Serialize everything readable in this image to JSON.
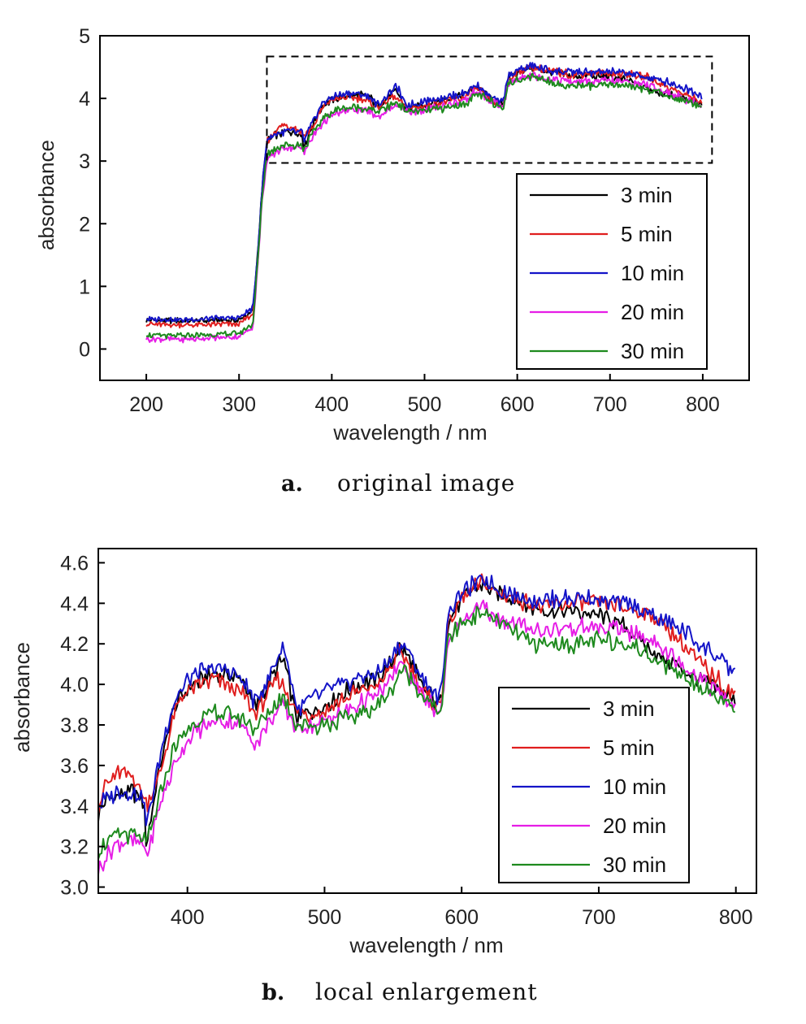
{
  "chart_data": [
    {
      "id": "a",
      "type": "line",
      "caption_letter": "a.",
      "caption": "original image",
      "xlabel": "wavelength / nm",
      "ylabel": "absorbance",
      "xlim": [
        150,
        850
      ],
      "ylim": [
        -0.5,
        5
      ],
      "xticks": [
        200,
        300,
        400,
        500,
        600,
        700,
        800
      ],
      "yticks": [
        0,
        1,
        2,
        3,
        4,
        5
      ],
      "grid": false,
      "legend_position": "bottom-right",
      "dashed_box": {
        "x": [
          330,
          810
        ],
        "y": [
          2.97,
          4.67
        ]
      },
      "series_keys": [
        "3 min",
        "5 min",
        "10 min",
        "20 min",
        "30 min"
      ]
    },
    {
      "id": "b",
      "type": "line",
      "caption_letter": "b.",
      "caption": "local enlargement",
      "xlabel": "wavelength / nm",
      "ylabel": "absorbance",
      "xlim": [
        335,
        815
      ],
      "ylim": [
        2.97,
        4.67
      ],
      "xticks": [
        400,
        500,
        600,
        700,
        800
      ],
      "yticks": [
        3.0,
        3.2,
        3.4,
        3.6,
        3.8,
        4.0,
        4.2,
        4.4,
        4.6
      ],
      "ytick_labels": [
        "3.0",
        "3.2",
        "3.4",
        "3.6",
        "3.8",
        "4.0",
        "4.2",
        "4.4",
        "4.6"
      ],
      "grid": false,
      "legend_position": "bottom-right",
      "series_keys": [
        "3 min",
        "5 min",
        "10 min",
        "20 min",
        "30 min"
      ]
    }
  ],
  "series": [
    {
      "name": "3 min",
      "color": "#000000",
      "x": [
        200,
        240,
        300,
        315,
        320,
        325,
        330,
        340,
        350,
        360,
        368,
        370,
        380,
        390,
        400,
        410,
        420,
        430,
        440,
        450,
        460,
        465,
        470,
        480,
        500,
        520,
        540,
        550,
        555,
        560,
        570,
        580,
        585,
        590,
        600,
        610,
        615,
        620,
        630,
        640,
        650,
        660,
        680,
        700,
        720,
        740,
        760,
        780,
        800
      ],
      "y": [
        0.46,
        0.45,
        0.46,
        0.6,
        1.5,
        2.6,
        3.3,
        3.42,
        3.46,
        3.47,
        3.42,
        3.22,
        3.6,
        3.88,
        3.98,
        4.02,
        4.05,
        4.05,
        4.02,
        3.88,
        4.02,
        4.08,
        4.12,
        3.83,
        3.9,
        3.98,
        4.04,
        4.12,
        4.18,
        4.15,
        4.0,
        3.92,
        3.9,
        4.32,
        4.42,
        4.48,
        4.5,
        4.47,
        4.44,
        4.42,
        4.38,
        4.36,
        4.36,
        4.34,
        4.28,
        4.16,
        4.08,
        4.0,
        3.92
      ]
    },
    {
      "name": "5 min",
      "color": "#e01e1e",
      "x": [
        200,
        240,
        300,
        315,
        320,
        325,
        330,
        340,
        350,
        360,
        368,
        370,
        380,
        390,
        400,
        410,
        420,
        430,
        440,
        450,
        460,
        465,
        470,
        480,
        500,
        520,
        540,
        550,
        555,
        560,
        570,
        580,
        585,
        590,
        600,
        610,
        615,
        620,
        630,
        640,
        650,
        660,
        680,
        700,
        720,
        740,
        760,
        780,
        800
      ],
      "y": [
        0.4,
        0.38,
        0.4,
        0.55,
        1.4,
        2.5,
        3.3,
        3.5,
        3.57,
        3.55,
        3.45,
        3.4,
        3.55,
        3.85,
        3.98,
        4.0,
        4.02,
        4.0,
        3.95,
        3.85,
        3.98,
        4.02,
        4.0,
        3.85,
        3.87,
        3.95,
        4.0,
        4.1,
        4.16,
        4.12,
        3.98,
        3.9,
        3.9,
        4.3,
        4.42,
        4.48,
        4.5,
        4.48,
        4.44,
        4.42,
        4.4,
        4.38,
        4.4,
        4.4,
        4.38,
        4.34,
        4.2,
        4.06,
        3.95
      ]
    },
    {
      "name": "10 min",
      "color": "#1414c8",
      "x": [
        200,
        240,
        300,
        315,
        320,
        325,
        330,
        340,
        350,
        360,
        368,
        370,
        380,
        390,
        400,
        410,
        420,
        430,
        440,
        450,
        460,
        465,
        470,
        480,
        500,
        520,
        540,
        550,
        555,
        560,
        570,
        580,
        585,
        590,
        600,
        610,
        615,
        620,
        630,
        640,
        650,
        660,
        680,
        700,
        720,
        740,
        760,
        780,
        800
      ],
      "y": [
        0.48,
        0.47,
        0.5,
        0.65,
        1.5,
        2.6,
        3.35,
        3.44,
        3.47,
        3.46,
        3.45,
        3.3,
        3.65,
        3.92,
        4.02,
        4.06,
        4.08,
        4.07,
        4.02,
        3.9,
        4.05,
        4.12,
        4.2,
        3.88,
        3.96,
        4.02,
        4.06,
        4.14,
        4.2,
        4.18,
        4.04,
        3.95,
        3.95,
        4.35,
        4.45,
        4.5,
        4.52,
        4.5,
        4.46,
        4.44,
        4.42,
        4.42,
        4.42,
        4.42,
        4.4,
        4.34,
        4.27,
        4.17,
        4.05
      ]
    },
    {
      "name": "20 min",
      "color": "#e61ee6",
      "x": [
        200,
        240,
        300,
        315,
        320,
        325,
        330,
        340,
        350,
        360,
        368,
        370,
        380,
        390,
        400,
        410,
        420,
        430,
        440,
        450,
        460,
        465,
        470,
        480,
        500,
        520,
        540,
        550,
        555,
        560,
        570,
        580,
        585,
        590,
        600,
        610,
        615,
        620,
        630,
        640,
        650,
        660,
        680,
        700,
        720,
        740,
        760,
        780,
        800
      ],
      "y": [
        0.16,
        0.15,
        0.2,
        0.35,
        1.3,
        2.4,
        3.0,
        3.15,
        3.22,
        3.22,
        3.2,
        3.15,
        3.4,
        3.6,
        3.72,
        3.78,
        3.82,
        3.82,
        3.8,
        3.7,
        3.82,
        3.86,
        3.9,
        3.78,
        3.82,
        3.88,
        3.95,
        4.05,
        4.1,
        4.08,
        3.96,
        3.88,
        3.86,
        4.22,
        4.32,
        4.36,
        4.38,
        4.35,
        4.32,
        4.3,
        4.28,
        4.26,
        4.28,
        4.28,
        4.26,
        4.22,
        4.1,
        4.0,
        3.88
      ]
    },
    {
      "name": "30 min",
      "color": "#1e8a1e",
      "x": [
        200,
        240,
        300,
        315,
        320,
        325,
        330,
        340,
        350,
        360,
        368,
        370,
        380,
        390,
        400,
        410,
        420,
        430,
        440,
        450,
        460,
        465,
        470,
        480,
        500,
        520,
        540,
        550,
        555,
        560,
        570,
        580,
        585,
        590,
        600,
        610,
        615,
        620,
        630,
        640,
        650,
        660,
        680,
        700,
        720,
        740,
        760,
        780,
        800
      ],
      "y": [
        0.22,
        0.21,
        0.25,
        0.4,
        1.35,
        2.45,
        3.1,
        3.22,
        3.26,
        3.26,
        3.24,
        3.2,
        3.45,
        3.68,
        3.78,
        3.84,
        3.86,
        3.85,
        3.83,
        3.78,
        3.86,
        3.9,
        3.95,
        3.8,
        3.8,
        3.84,
        3.9,
        3.98,
        4.08,
        4.05,
        3.96,
        3.88,
        3.86,
        4.22,
        4.3,
        4.34,
        4.36,
        4.34,
        4.3,
        4.25,
        4.2,
        4.2,
        4.2,
        4.22,
        4.2,
        4.14,
        4.05,
        3.97,
        3.88
      ]
    }
  ]
}
